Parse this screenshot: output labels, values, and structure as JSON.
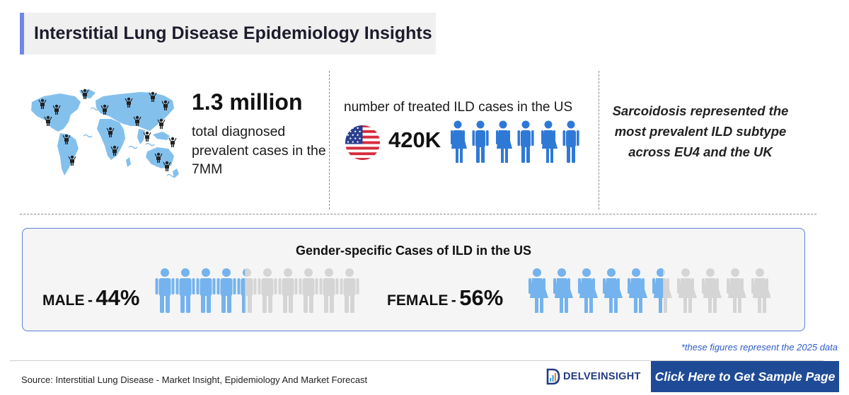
{
  "title": "Interstitial Lung Disease Epidemiology Insights",
  "stat_prevalent": {
    "value": "1.3 million",
    "description": "total diagnosed prevalent cases in the 7MM",
    "icon": "world-map-people-icon"
  },
  "stat_treated": {
    "description": "number of treated ILD cases in the US",
    "value": "420K",
    "icon": "us-flag-icon"
  },
  "stat_subtype": {
    "text": "Sarcoidosis represented the most prevalent ILD subtype across EU4 and the UK"
  },
  "gender": {
    "title": "Gender-specific Cases of ILD in the US",
    "male": {
      "label": "MALE",
      "dash": "-",
      "percent": "44%",
      "fraction": 0.44
    },
    "female": {
      "label": "FEMALE",
      "dash": "-",
      "percent": "56%",
      "fraction": 0.56
    }
  },
  "footnote": "*these figures represent the 2025 data",
  "source": "Source: Interstitial Lung Disease - Market Insight, Epidemiology And Market Forecast",
  "brand": {
    "name": "DELVEINSIGHT",
    "logo_letter": "D"
  },
  "cta": {
    "label": "Click Here to Get Sample Page"
  },
  "colors": {
    "accent": "#6f87e8",
    "figure_blue": "#2f79d6",
    "gender_blue": "#74b3ee",
    "gender_grey": "#d5d5d5",
    "map_blue": "#84c0ec",
    "cta_bg": "#1f4b96",
    "brand_navy": "#243b86",
    "footnote_blue": "#2d5ec9"
  }
}
